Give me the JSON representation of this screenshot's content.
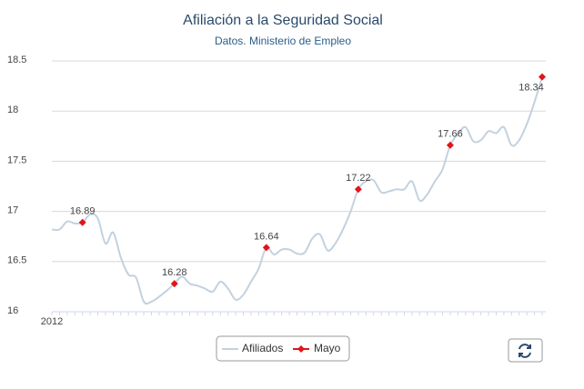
{
  "chart_data": {
    "type": "line",
    "title": "Afiliación a la Seguridad Social",
    "subtitle": "Datos. Ministerio de Empleo",
    "categories": [
      "2012",
      null,
      null,
      null,
      null,
      null,
      null,
      null,
      null,
      null,
      null,
      null,
      null,
      null,
      null,
      null,
      null,
      null,
      null,
      null,
      null,
      null,
      null,
      null,
      null,
      null,
      null,
      null,
      null,
      null,
      null,
      null,
      null,
      null,
      null,
      null,
      null,
      null,
      null,
      null,
      null,
      null,
      null,
      null,
      null,
      null,
      null,
      null,
      null,
      null,
      null,
      null,
      null,
      null,
      null,
      null,
      null,
      null,
      null,
      null,
      null,
      null,
      null,
      null,
      null
    ],
    "series": [
      {
        "name": "Afiliados",
        "color": "#c3d1df",
        "values": [
          16.82,
          16.82,
          16.9,
          16.88,
          16.89,
          16.97,
          16.93,
          16.68,
          16.79,
          16.54,
          16.37,
          16.34,
          16.1,
          16.1,
          16.15,
          16.21,
          16.28,
          16.35,
          16.28,
          16.26,
          16.23,
          16.2,
          16.3,
          16.23,
          16.12,
          16.17,
          16.3,
          16.43,
          16.64,
          16.57,
          16.62,
          16.62,
          16.58,
          16.59,
          16.73,
          16.77,
          16.61,
          16.68,
          16.82,
          17.0,
          17.22,
          17.3,
          17.31,
          17.19,
          17.2,
          17.22,
          17.22,
          17.3,
          17.11,
          17.17,
          17.3,
          17.42,
          17.66,
          17.77,
          17.84,
          17.7,
          17.71,
          17.8,
          17.78,
          17.84,
          17.66,
          17.71,
          17.87,
          18.09,
          18.34
        ]
      },
      {
        "name": "Mayo",
        "color": "#e0151b",
        "values": [
          null,
          null,
          null,
          null,
          16.89,
          null,
          null,
          null,
          null,
          null,
          null,
          null,
          null,
          null,
          null,
          null,
          16.28,
          null,
          null,
          null,
          null,
          null,
          null,
          null,
          null,
          null,
          null,
          null,
          16.64,
          null,
          null,
          null,
          null,
          null,
          null,
          null,
          null,
          null,
          null,
          null,
          17.22,
          null,
          null,
          null,
          null,
          null,
          null,
          null,
          null,
          null,
          null,
          null,
          17.66,
          null,
          null,
          null,
          null,
          null,
          null,
          null,
          null,
          null,
          null,
          null,
          18.34
        ]
      }
    ],
    "ylim": [
      16,
      18.5
    ],
    "yticks": [
      16,
      16.5,
      17,
      17.5,
      18,
      18.5
    ],
    "grid": true
  }
}
